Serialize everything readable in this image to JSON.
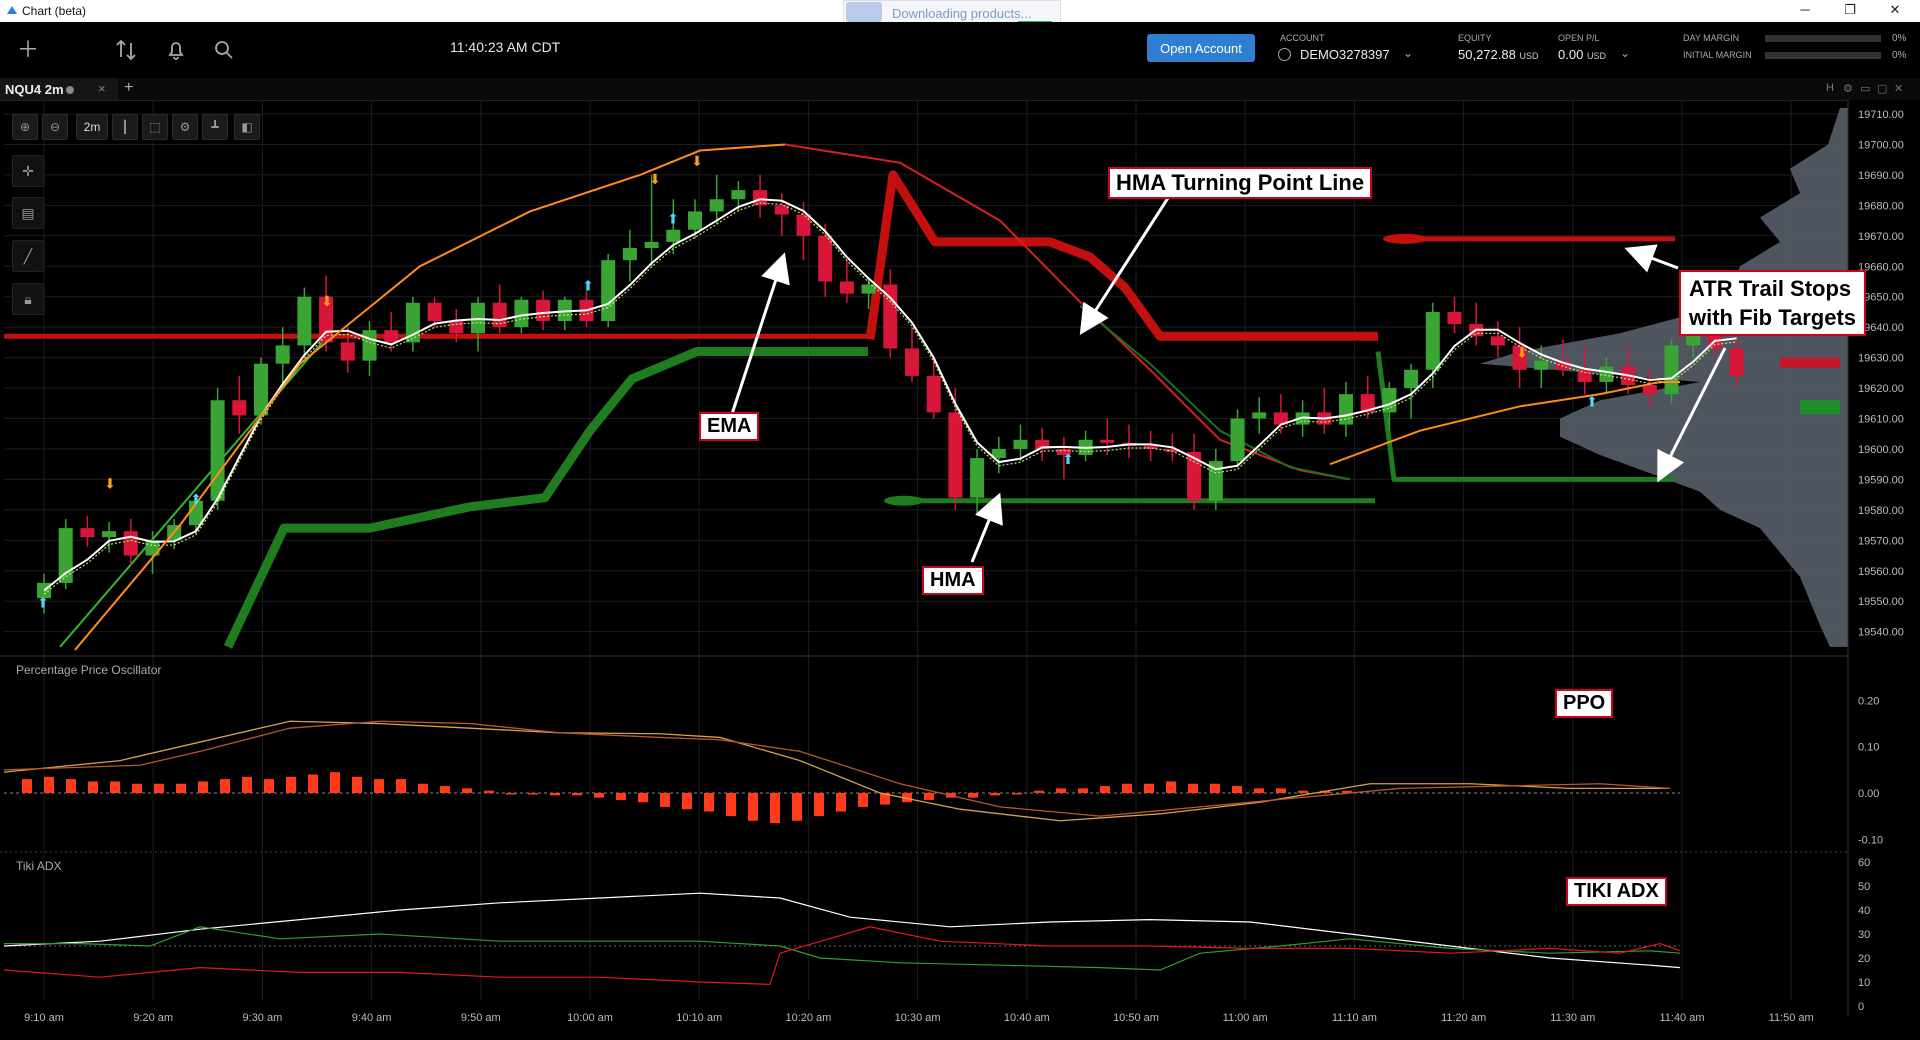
{
  "window": {
    "title": "Chart (beta)"
  },
  "toast": {
    "text": "Downloading products..."
  },
  "toolbar": {
    "icons": [
      "add-icon",
      "sort-icon",
      "bell-icon",
      "search-icon"
    ],
    "time": "11:40:23 AM CDT",
    "open_account_label": "Open Account"
  },
  "account": {
    "account_label": "ACCOUNT",
    "account_value": "DEMO3278397",
    "equity_label": "EQUITY",
    "equity_value": "50,272.88",
    "equity_unit": "USD",
    "openpl_label": "OPEN P/L",
    "openpl_value": "0.00",
    "openpl_unit": "USD",
    "day_margin_label": "DAY MARGIN",
    "day_margin_pct": "0%",
    "initial_margin_label": "INITIAL MARGIN",
    "initial_margin_pct": "0%"
  },
  "tab": {
    "label": "NQU4 2m",
    "close": "×",
    "add": "+"
  },
  "chart_toolbar": {
    "interval": "2m"
  },
  "annotations": {
    "hma_tp": "HMA Turning Point Line",
    "atr_line1": "ATR Trail Stops",
    "atr_line2": "with Fib Targets",
    "ema": "EMA",
    "hma": "HMA",
    "ppo": "PPO",
    "tiki": "TIKI ADX"
  },
  "panels": {
    "ppo_title": "Percentage Price Oscillator",
    "tiki_title": "Tiki ADX"
  },
  "colors": {
    "up": "#3aa535",
    "down": "#d7163a",
    "hma": "#ffffff",
    "ema": "#ff8c1a",
    "atr_stop_red": "#c40f0f",
    "atr_stop_green": "#1f7d1f",
    "turning_point": "#d81f1f",
    "ppo_hist": "#ff3b1a",
    "ppo_line1": "#d6a14a",
    "ppo_line2": "#b5582c",
    "adx_white": "#ffffff",
    "adx_green": "#2f9e33",
    "adx_red": "#e01919",
    "volume_profile": "#5d6470",
    "accent": "#2f7fd1"
  },
  "chart_data": [
    {
      "type": "candlestick",
      "title": "NQU4 2m",
      "y_axis_ticks": [
        "19710.00",
        "19700.00",
        "19690.00",
        "19680.00",
        "19670.00",
        "19660.00",
        "19650.00",
        "19640.00",
        "19630.00",
        "19620.00",
        "19610.00",
        "19600.00",
        "19590.00",
        "19580.00",
        "19570.00",
        "19560.00",
        "19550.00",
        "19540.00"
      ],
      "ylim": [
        19535,
        19712
      ],
      "x_axis_ticks": [
        "9:10 am",
        "9:20 am",
        "9:30 am",
        "9:40 am",
        "9:50 am",
        "10:00 am",
        "10:10 am",
        "10:20 am",
        "10:30 am",
        "10:40 am",
        "10:50 am",
        "11:00 am",
        "11:10 am",
        "11:20 am",
        "11:30 am",
        "11:40 am",
        "11:50 am"
      ],
      "bars_ohlc": [
        [
          19551,
          19559,
          19546,
          19556
        ],
        [
          19556,
          19577,
          19554,
          19574
        ],
        [
          19574,
          19578,
          19568,
          19571
        ],
        [
          19571,
          19576,
          19566,
          19573
        ],
        [
          19573,
          19577,
          19562,
          19565
        ],
        [
          19565,
          19573,
          19559,
          19570
        ],
        [
          19570,
          19577,
          19567,
          19575
        ],
        [
          19575,
          19585,
          19572,
          19583
        ],
        [
          19583,
          19620,
          19580,
          19616
        ],
        [
          19616,
          19624,
          19605,
          19611
        ],
        [
          19611,
          19630,
          19608,
          19628
        ],
        [
          19628,
          19640,
          19620,
          19634
        ],
        [
          19634,
          19653,
          19630,
          19650
        ],
        [
          19650,
          19657,
          19632,
          19635
        ],
        [
          19635,
          19640,
          19625,
          19629
        ],
        [
          19629,
          19642,
          19624,
          19639
        ],
        [
          19639,
          19645,
          19632,
          19635
        ],
        [
          19635,
          19650,
          19632,
          19648
        ],
        [
          19648,
          19650,
          19640,
          19642
        ],
        [
          19642,
          19646,
          19635,
          19638
        ],
        [
          19638,
          19650,
          19632,
          19648
        ],
        [
          19648,
          19654,
          19638,
          19640
        ],
        [
          19640,
          19650,
          19638,
          19649
        ],
        [
          19649,
          19652,
          19639,
          19642
        ],
        [
          19642,
          19650,
          19639,
          19649
        ],
        [
          19649,
          19652,
          19640,
          19642
        ],
        [
          19642,
          19664,
          19640,
          19662
        ],
        [
          19662,
          19672,
          19655,
          19666
        ],
        [
          19666,
          19690,
          19660,
          19668
        ],
        [
          19668,
          19682,
          19664,
          19672
        ],
        [
          19672,
          19682,
          19669,
          19678
        ],
        [
          19678,
          19690,
          19674,
          19682
        ],
        [
          19682,
          19688,
          19678,
          19685
        ],
        [
          19685,
          19690,
          19676,
          19680
        ],
        [
          19680,
          19684,
          19670,
          19677
        ],
        [
          19677,
          19681,
          19662,
          19670
        ],
        [
          19670,
          19674,
          19650,
          19655
        ],
        [
          19655,
          19662,
          19648,
          19651
        ],
        [
          19651,
          19656,
          19646,
          19654
        ],
        [
          19654,
          19659,
          19630,
          19633
        ],
        [
          19633,
          19640,
          19622,
          19624
        ],
        [
          19624,
          19630,
          19610,
          19612
        ],
        [
          19612,
          19620,
          19580,
          19584
        ],
        [
          19584,
          19600,
          19578,
          19597
        ],
        [
          19597,
          19604,
          19592,
          19600
        ],
        [
          19600,
          19608,
          19596,
          19603
        ],
        [
          19603,
          19607,
          19596,
          19600
        ],
        [
          19600,
          19604,
          19590,
          19598
        ],
        [
          19598,
          19606,
          19596,
          19603
        ],
        [
          19603,
          19610,
          19598,
          19602
        ],
        [
          19602,
          19608,
          19597,
          19601
        ],
        [
          19601,
          19606,
          19596,
          19600
        ],
        [
          19600,
          19605,
          19596,
          19599
        ],
        [
          19599,
          19605,
          19580,
          19583
        ],
        [
          19583,
          19600,
          19580,
          19596
        ],
        [
          19596,
          19613,
          19594,
          19610
        ],
        [
          19610,
          19617,
          19605,
          19612
        ],
        [
          19612,
          19618,
          19605,
          19608
        ],
        [
          19608,
          19616,
          19604,
          19612
        ],
        [
          19612,
          19620,
          19605,
          19608
        ],
        [
          19608,
          19622,
          19604,
          19618
        ],
        [
          19618,
          19624,
          19610,
          19612
        ],
        [
          19612,
          19622,
          19606,
          19620
        ],
        [
          19620,
          19628,
          19610,
          19626
        ],
        [
          19626,
          19648,
          19620,
          19645
        ],
        [
          19645,
          19650,
          19638,
          19641
        ],
        [
          19641,
          19648,
          19634,
          19637
        ],
        [
          19637,
          19642,
          19630,
          19634
        ],
        [
          19634,
          19640,
          19620,
          19626
        ],
        [
          19626,
          19634,
          19620,
          19629
        ],
        [
          19629,
          19636,
          19624,
          19626
        ],
        [
          19626,
          19634,
          19618,
          19622
        ],
        [
          19622,
          19630,
          19618,
          19627
        ],
        [
          19627,
          19634,
          19618,
          19621
        ],
        [
          19621,
          19626,
          19614,
          19618
        ],
        [
          19618,
          19636,
          19615,
          19634
        ],
        [
          19634,
          19652,
          19630,
          19647
        ],
        [
          19647,
          19650,
          19630,
          19633
        ],
        [
          19633,
          19636,
          19620,
          19624
        ]
      ],
      "series": [
        {
          "name": "HMA"
        },
        {
          "name": "EMA"
        },
        {
          "name": "HMA Turning Point Line"
        },
        {
          "name": "ATR Trail Stops"
        }
      ]
    },
    {
      "type": "bar",
      "title": "Percentage Price Oscillator",
      "y_axis_ticks": [
        "0.20",
        "0.10",
        "0.00",
        "-0.10"
      ],
      "ylim": [
        -0.2,
        0.22
      ]
    },
    {
      "type": "line",
      "title": "Tiki ADX",
      "y_axis_ticks": [
        "60",
        "50",
        "40",
        "30",
        "20",
        "10",
        "0"
      ],
      "ylim": [
        0,
        62
      ]
    }
  ]
}
